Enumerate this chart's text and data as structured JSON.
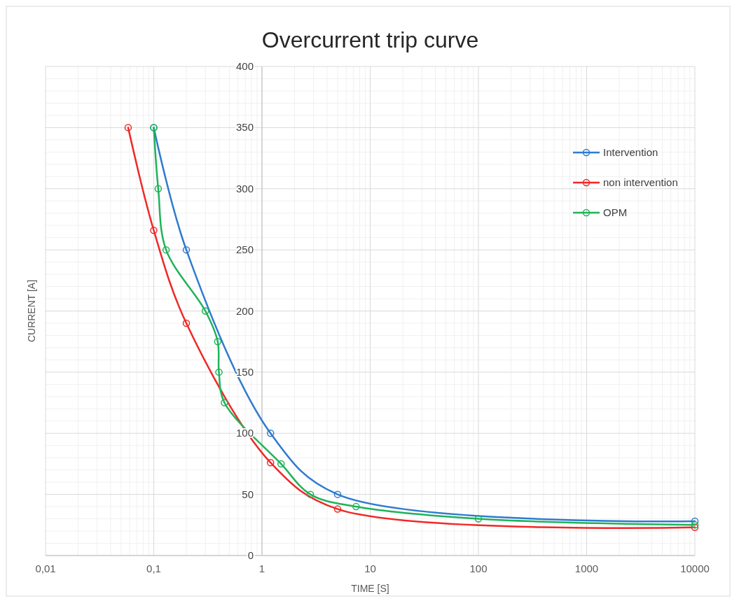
{
  "chart_data": {
    "type": "line",
    "title": "Overcurrent trip curve",
    "xlabel": "TIME [S]",
    "ylabel": "CURRENT [A]",
    "log": "x",
    "xlim": [
      0.01,
      10000
    ],
    "xticks": [
      {
        "value": 0.01,
        "label": "0,01"
      },
      {
        "value": 0.1,
        "label": "0,1"
      },
      1,
      10,
      100,
      1000,
      10000
    ],
    "ylim": [
      0,
      400
    ],
    "yticks": [
      0,
      50,
      100,
      150,
      200,
      250,
      300,
      350,
      400
    ],
    "grid": true,
    "legend": "top right",
    "marker": "circle",
    "series": [
      {
        "name": "Intervention",
        "color": "#2e7bcf",
        "x": [
          0.1,
          0.2,
          1.2,
          5,
          10000
        ],
        "values": [
          350,
          250,
          100,
          50,
          28
        ]
      },
      {
        "name": "non intervention",
        "color": "#f02828",
        "x": [
          0.058,
          0.1,
          0.2,
          1.2,
          5,
          10000
        ],
        "values": [
          350,
          266,
          190,
          76,
          38,
          23
        ]
      },
      {
        "name": "OPM",
        "color": "#1fb35a",
        "x": [
          0.1,
          0.11,
          0.13,
          0.3,
          0.39,
          0.4,
          0.45,
          1.5,
          2.8,
          7.4,
          100,
          10000
        ],
        "values": [
          350,
          300,
          250,
          200,
          175,
          150,
          125,
          75,
          50,
          40,
          30,
          25
        ]
      }
    ]
  }
}
